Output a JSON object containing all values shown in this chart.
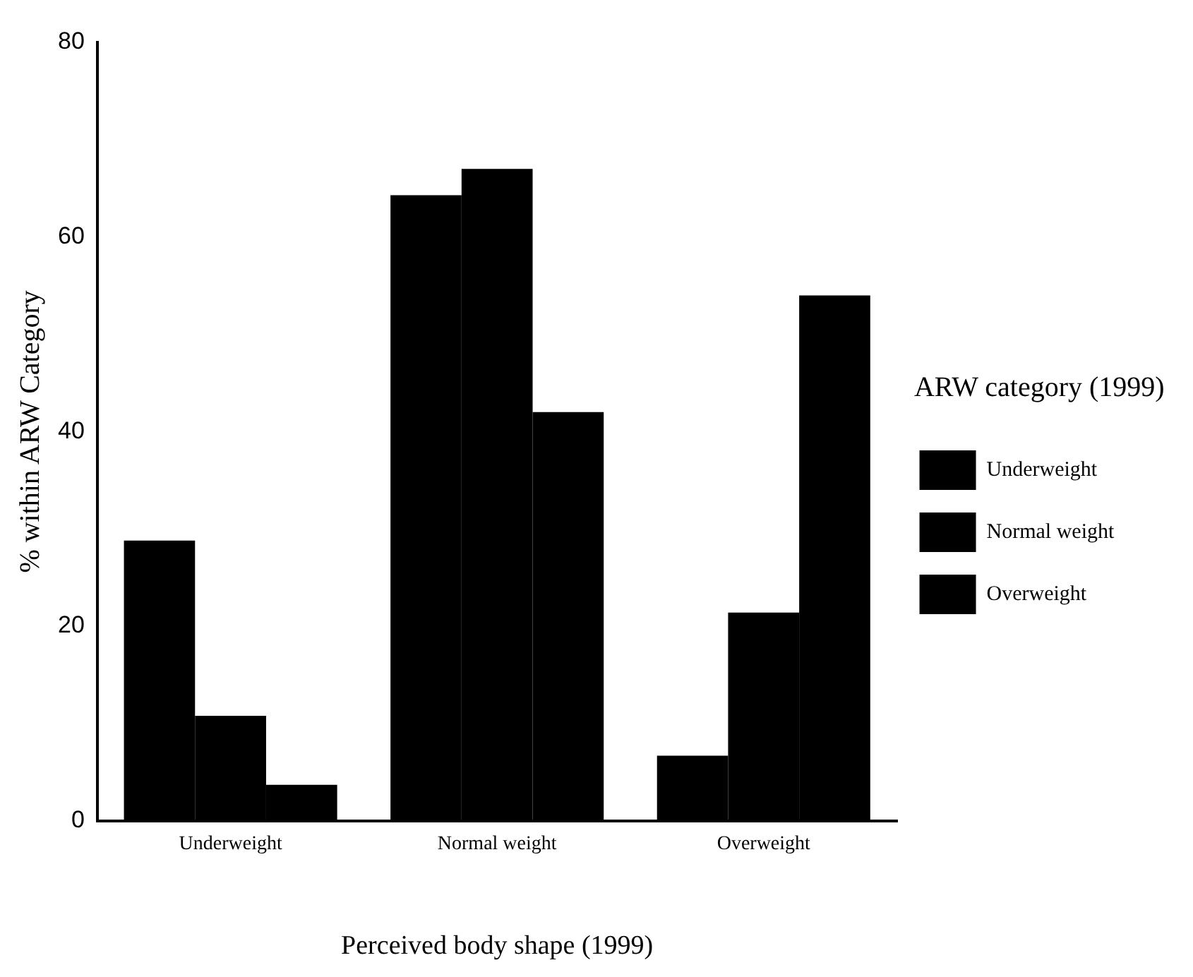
{
  "chart_data": {
    "type": "bar",
    "xlabel": "Perceived body shape (1999)",
    "ylabel": "% within ARW Category",
    "legend_title": "ARW category (1999)",
    "categories": [
      "Underweight",
      "Normal weight",
      "Overweight"
    ],
    "series": [
      {
        "name": "Underweight",
        "color": "#000000",
        "values": [
          28.8,
          64.3,
          6.7
        ]
      },
      {
        "name": "Normal weight",
        "color": "#000000",
        "values": [
          10.8,
          67.0,
          21.4
        ]
      },
      {
        "name": "Overweight",
        "color": "#000000",
        "values": [
          3.7,
          42.0,
          54.0
        ]
      }
    ],
    "ylim": [
      0,
      80
    ],
    "yticks": [
      0,
      20,
      40,
      60,
      80
    ],
    "grid": false,
    "legend": "right"
  }
}
